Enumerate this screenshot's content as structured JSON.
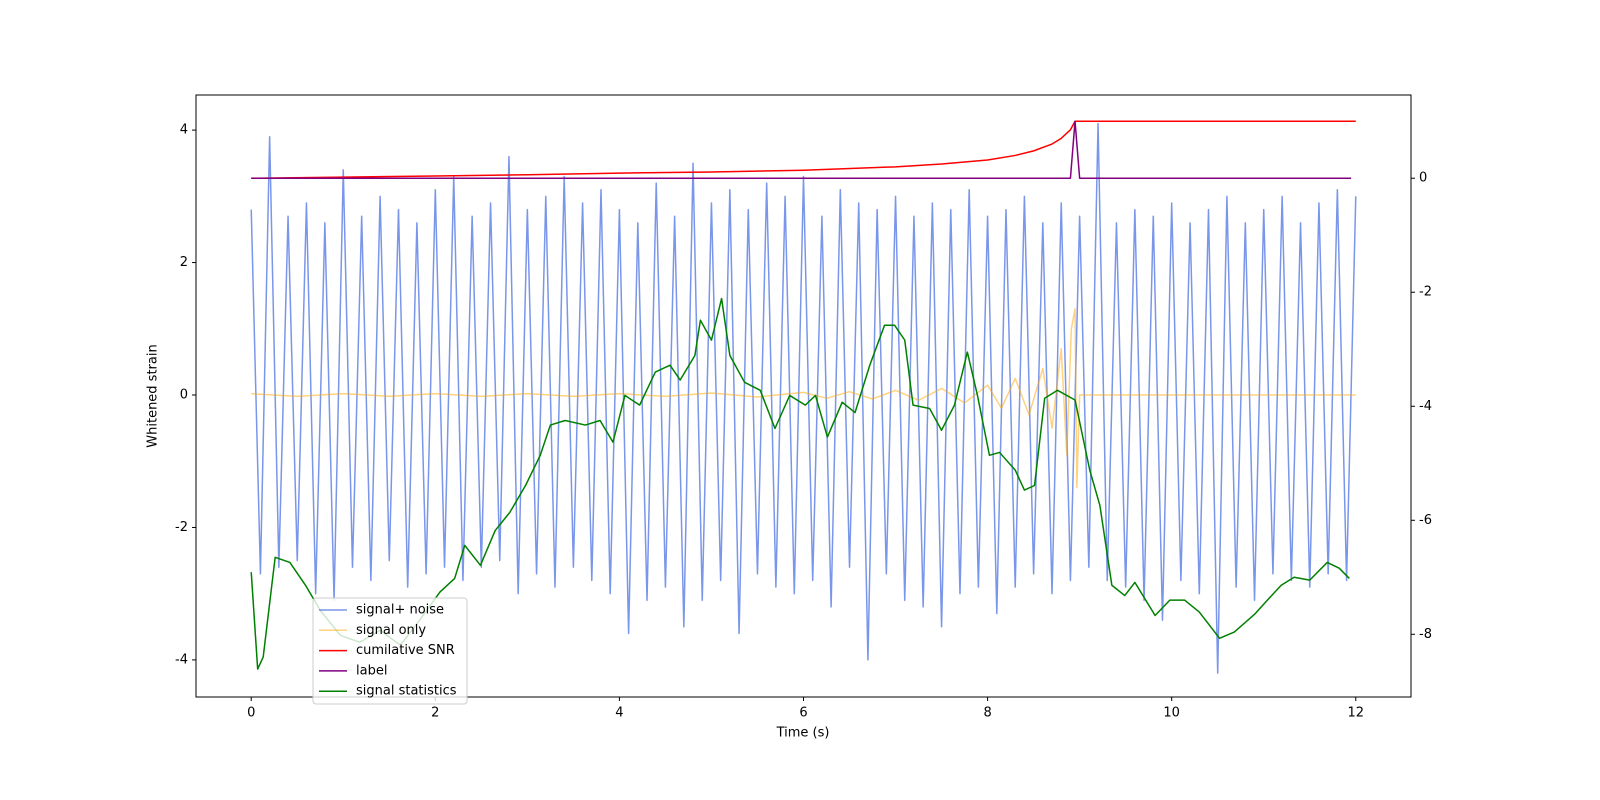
{
  "chart_data": {
    "type": "line",
    "xlabel": "Time (s)",
    "ylabel": "Whitened strain",
    "xlim": [
      -0.6,
      12.6
    ],
    "xticks": [
      0,
      2,
      4,
      6,
      8,
      10,
      12
    ],
    "ylim": [
      -4.56,
      4.53
    ],
    "yticks": [
      -4,
      -2,
      0,
      2,
      4
    ],
    "y2lim": [
      -9.1,
      1.46
    ],
    "y2ticks": [
      -8,
      -6,
      -4,
      -2,
      0
    ],
    "legend": "lower left",
    "series": [
      {
        "name": "signal+ noise",
        "color": "#4169e1",
        "alpha": 0.7,
        "x": [
          0,
          0.1,
          0.2,
          0.3,
          0.4,
          0.5,
          0.6,
          0.7,
          0.8,
          0.9,
          1,
          1.1,
          1.2,
          1.3,
          1.4,
          1.5,
          1.6,
          1.7,
          1.8,
          1.9,
          2,
          2.1,
          2.2,
          2.3,
          2.4,
          2.5,
          2.6,
          2.7,
          2.8,
          2.9,
          3,
          3.1,
          3.2,
          3.3,
          3.4,
          3.5,
          3.6,
          3.7,
          3.8,
          3.9,
          4,
          4.1,
          4.2,
          4.3,
          4.4,
          4.5,
          4.6,
          4.7,
          4.8,
          4.9,
          5,
          5.1,
          5.2,
          5.3,
          5.4,
          5.5,
          5.6,
          5.7,
          5.8,
          5.9,
          6,
          6.1,
          6.2,
          6.3,
          6.4,
          6.5,
          6.6,
          6.7,
          6.8,
          6.9,
          7,
          7.1,
          7.2,
          7.3,
          7.4,
          7.5,
          7.6,
          7.7,
          7.8,
          7.9,
          8,
          8.1,
          8.2,
          8.3,
          8.4,
          8.5,
          8.6,
          8.7,
          8.8,
          8.9,
          9,
          9.1,
          9.2,
          9.3,
          9.4,
          9.5,
          9.6,
          9.7,
          9.8,
          9.9,
          10,
          10.1,
          10.2,
          10.3,
          10.4,
          10.5,
          10.6,
          10.7,
          10.8,
          10.9,
          11,
          11.1,
          11.2,
          11.3,
          11.4,
          11.5,
          11.6,
          11.7,
          11.8,
          11.9,
          12
        ],
        "values": [
          2.8,
          -2.7,
          3.9,
          -2.6,
          2.7,
          -2.5,
          2.9,
          -3.0,
          2.6,
          -3.1,
          3.4,
          -2.6,
          2.7,
          -2.8,
          3.0,
          -2.5,
          2.8,
          -2.9,
          2.6,
          -2.7,
          3.1,
          -2.6,
          3.3,
          -2.8,
          2.7,
          -2.6,
          2.9,
          -2.5,
          3.6,
          -3.0,
          2.8,
          -2.7,
          3.0,
          -2.9,
          3.3,
          -2.6,
          2.9,
          -2.8,
          3.1,
          -3.0,
          2.8,
          -3.6,
          2.6,
          -3.1,
          3.2,
          -2.9,
          2.7,
          -3.5,
          3.5,
          -3.1,
          2.9,
          -2.8,
          3.1,
          -3.6,
          2.8,
          -2.7,
          3.2,
          -2.9,
          3.0,
          -3.0,
          3.3,
          -2.8,
          2.7,
          -3.2,
          3.1,
          -2.6,
          2.9,
          -4.0,
          2.8,
          -2.7,
          3.0,
          -3.1,
          2.7,
          -3.2,
          2.9,
          -3.5,
          2.8,
          -3.0,
          3.1,
          -2.9,
          2.7,
          -3.3,
          2.8,
          -2.9,
          3.0,
          -2.7,
          2.6,
          -3.0,
          2.9,
          -2.8,
          2.7,
          -2.6,
          4.1,
          -2.8,
          2.6,
          -2.9,
          2.8,
          -3.1,
          2.7,
          -3.4,
          2.9,
          -2.8,
          2.6,
          -3.0,
          2.8,
          -4.2,
          3.0,
          -2.9,
          2.6,
          -3.1,
          2.8,
          -2.7,
          3.0,
          -2.8,
          2.6,
          -2.9,
          2.9,
          -2.7,
          3.1,
          -2.8,
          3.0
        ]
      },
      {
        "name": "signal only",
        "color": "#ffa500",
        "alpha": 0.5,
        "x": [
          0,
          0.5,
          1,
          1.5,
          2,
          2.5,
          3,
          3.5,
          4,
          4.5,
          5,
          5.5,
          6,
          6.25,
          6.5,
          6.75,
          7,
          7.25,
          7.5,
          7.75,
          8,
          8.15,
          8.3,
          8.45,
          8.6,
          8.7,
          8.8,
          8.86,
          8.91,
          8.95,
          8.97,
          9.0,
          12
        ],
        "values": [
          0.02,
          -0.02,
          0.02,
          -0.02,
          0.02,
          -0.02,
          0.02,
          -0.02,
          0.02,
          -0.02,
          0.03,
          -0.03,
          0.04,
          -0.05,
          0.05,
          -0.06,
          0.07,
          -0.08,
          0.1,
          -0.12,
          0.15,
          -0.2,
          0.25,
          -0.3,
          0.4,
          -0.5,
          0.7,
          -0.9,
          1.0,
          1.3,
          -1.4,
          0,
          0
        ]
      },
      {
        "name": "cumilative SNR",
        "color": "#ff0000",
        "axis": "y2",
        "x": [
          0,
          1,
          2,
          3,
          4,
          5,
          6,
          7,
          7.5,
          8,
          8.3,
          8.5,
          8.7,
          8.8,
          8.9,
          8.95,
          9.0,
          12
        ],
        "values": [
          0,
          0.02,
          0.04,
          0.06,
          0.09,
          0.11,
          0.14,
          0.2,
          0.25,
          0.32,
          0.4,
          0.48,
          0.6,
          0.7,
          0.85,
          1.0,
          1.0,
          1.0
        ]
      },
      {
        "name": "label",
        "color": "#800080",
        "axis": "y2",
        "x": [
          0,
          8.9,
          8.95,
          9.0,
          11.95
        ],
        "values": [
          0,
          0,
          1,
          0,
          0
        ]
      },
      {
        "name": "signal statistics",
        "color": "#008000",
        "axis": "y2",
        "x": [
          0,
          0.07,
          0.13,
          0.26,
          0.42,
          0.59,
          0.75,
          0.97,
          1.18,
          1.4,
          1.62,
          1.83,
          2.05,
          2.21,
          2.32,
          2.49,
          2.65,
          2.81,
          2.98,
          3.14,
          3.25,
          3.41,
          3.63,
          3.79,
          3.93,
          4.06,
          4.22,
          4.39,
          4.55,
          4.66,
          4.82,
          4.88,
          5.0,
          5.11,
          5.2,
          5.36,
          5.53,
          5.69,
          5.85,
          6.02,
          6.13,
          6.26,
          6.42,
          6.56,
          6.72,
          6.88,
          6.99,
          7.1,
          7.19,
          7.37,
          7.5,
          7.64,
          7.78,
          7.89,
          8.02,
          8.13,
          8.3,
          8.4,
          8.51,
          8.62,
          8.76,
          8.95,
          9.11,
          9.22,
          9.35,
          9.49,
          9.6,
          9.82,
          9.98,
          10.14,
          10.3,
          10.52,
          10.68,
          10.9,
          11.04,
          11.19,
          11.33,
          11.5,
          11.69,
          11.82,
          11.93
        ],
        "values": [
          -6.91,
          -8.61,
          -8.4,
          -6.65,
          -6.74,
          -7.14,
          -7.58,
          -8.02,
          -8.14,
          -7.93,
          -8.19,
          -7.75,
          -7.26,
          -7.02,
          -6.44,
          -6.79,
          -6.18,
          -5.86,
          -5.39,
          -4.86,
          -4.33,
          -4.25,
          -4.33,
          -4.25,
          -4.63,
          -3.81,
          -3.98,
          -3.4,
          -3.28,
          -3.54,
          -3.11,
          -2.49,
          -2.84,
          -2.11,
          -3.11,
          -3.58,
          -3.72,
          -4.39,
          -3.81,
          -3.98,
          -3.81,
          -4.54,
          -3.93,
          -4.11,
          -3.28,
          -2.58,
          -2.58,
          -2.84,
          -3.98,
          -4.04,
          -4.42,
          -3.98,
          -3.05,
          -3.81,
          -4.86,
          -4.81,
          -5.12,
          -5.47,
          -5.39,
          -3.86,
          -3.72,
          -3.89,
          -5.12,
          -5.74,
          -7.14,
          -7.32,
          -7.09,
          -7.67,
          -7.4,
          -7.4,
          -7.61,
          -8.07,
          -7.96,
          -7.65,
          -7.4,
          -7.14,
          -7.0,
          -7.05,
          -6.74,
          -6.84,
          -7.02
        ]
      }
    ]
  }
}
